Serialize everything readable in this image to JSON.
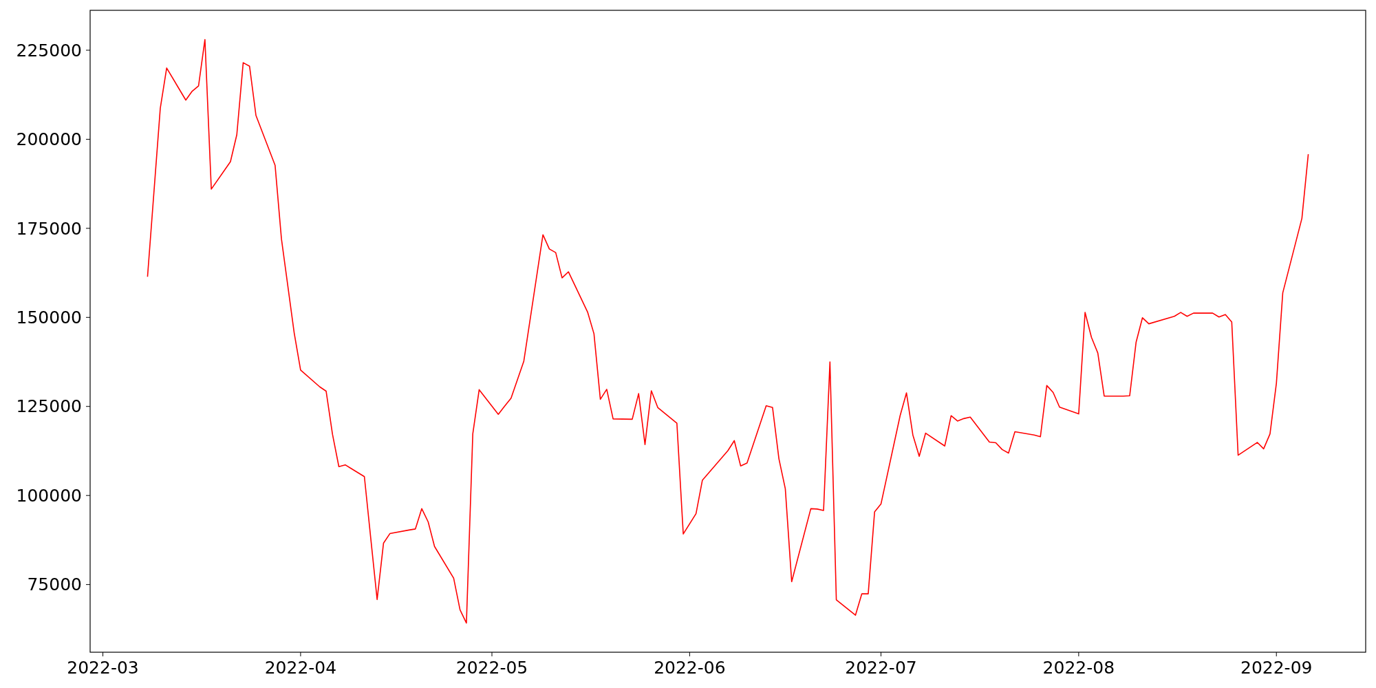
{
  "chart_data": {
    "type": "line",
    "x": [
      "2022-03-08",
      "2022-03-10",
      "2022-03-11",
      "2022-03-14",
      "2022-03-15",
      "2022-03-16",
      "2022-03-17",
      "2022-03-18",
      "2022-03-21",
      "2022-03-22",
      "2022-03-23",
      "2022-03-24",
      "2022-03-25",
      "2022-03-28",
      "2022-03-29",
      "2022-03-31",
      "2022-04-01",
      "2022-04-04",
      "2022-04-05",
      "2022-04-06",
      "2022-04-07",
      "2022-04-08",
      "2022-04-11",
      "2022-04-12",
      "2022-04-13",
      "2022-04-14",
      "2022-04-15",
      "2022-04-18",
      "2022-04-19",
      "2022-04-20",
      "2022-04-21",
      "2022-04-22",
      "2022-04-25",
      "2022-04-26",
      "2022-04-27",
      "2022-04-28",
      "2022-04-29",
      "2022-05-02",
      "2022-05-03",
      "2022-05-04",
      "2022-05-06",
      "2022-05-09",
      "2022-05-10",
      "2022-05-11",
      "2022-05-12",
      "2022-05-13",
      "2022-05-16",
      "2022-05-17",
      "2022-05-18",
      "2022-05-19",
      "2022-05-20",
      "2022-05-23",
      "2022-05-24",
      "2022-05-25",
      "2022-05-26",
      "2022-05-27",
      "2022-05-30",
      "2022-05-31",
      "2022-06-02",
      "2022-06-03",
      "2022-06-07",
      "2022-06-08",
      "2022-06-09",
      "2022-06-10",
      "2022-06-13",
      "2022-06-14",
      "2022-06-15",
      "2022-06-16",
      "2022-06-17",
      "2022-06-20",
      "2022-06-21",
      "2022-06-22",
      "2022-06-23",
      "2022-06-24",
      "2022-06-27",
      "2022-06-28",
      "2022-06-29",
      "2022-06-30",
      "2022-07-01",
      "2022-07-04",
      "2022-07-05",
      "2022-07-06",
      "2022-07-07",
      "2022-07-08",
      "2022-07-11",
      "2022-07-12",
      "2022-07-13",
      "2022-07-14",
      "2022-07-15",
      "2022-07-18",
      "2022-07-19",
      "2022-07-20",
      "2022-07-21",
      "2022-07-22",
      "2022-07-25",
      "2022-07-26",
      "2022-07-27",
      "2022-07-28",
      "2022-07-29",
      "2022-08-01",
      "2022-08-02",
      "2022-08-03",
      "2022-08-04",
      "2022-08-05",
      "2022-08-08",
      "2022-08-09",
      "2022-08-10",
      "2022-08-11",
      "2022-08-12",
      "2022-08-16",
      "2022-08-17",
      "2022-08-18",
      "2022-08-19",
      "2022-08-22",
      "2022-08-23",
      "2022-08-24",
      "2022-08-25",
      "2022-08-26",
      "2022-08-29",
      "2022-08-30",
      "2022-08-31",
      "2022-09-01",
      "2022-09-02",
      "2022-09-05",
      "2022-09-06"
    ],
    "series": [
      {
        "color": "#ff0000",
        "values": [
          161400,
          208700,
          220000,
          211000,
          213500,
          215000,
          228000,
          186000,
          193700,
          201300,
          221500,
          220500,
          206700,
          192700,
          172000,
          145600,
          135200,
          130500,
          129300,
          117200,
          108100,
          108600,
          105300,
          88000,
          70800,
          86600,
          89300,
          90300,
          90600,
          96300,
          92600,
          85700,
          76800,
          67900,
          64200,
          117300,
          129700,
          122800,
          125100,
          127300,
          137700,
          173200,
          169200,
          168200,
          161100,
          162800,
          151500,
          145400,
          127000,
          129800,
          121500,
          121400,
          128600,
          114300,
          129400,
          124700,
          120300,
          89200,
          94900,
          104300,
          112600,
          115400,
          108300,
          109100,
          125200,
          124700,
          110300,
          101900,
          75800,
          96300,
          96200,
          95800,
          137500,
          70700,
          66400,
          72400,
          72400,
          95400,
          97600,
          122400,
          128800,
          117000,
          111000,
          117500,
          113900,
          122400,
          120900,
          121600,
          122000,
          115000,
          114800,
          112900,
          111900,
          117900,
          117000,
          116500,
          130900,
          128900,
          124800,
          122900,
          151400,
          144400,
          140000,
          127900,
          127900,
          128000,
          143000,
          149900,
          148200,
          150300,
          151400,
          150300,
          151200,
          151200,
          150100,
          150800,
          148700,
          111300,
          114900,
          113100,
          117300,
          131500,
          156900,
          177800,
          195800
        ]
      }
    ],
    "xlim": [
      "2022-02-27",
      "2022-09-15"
    ],
    "xticks": [
      {
        "value": "2022-03-01",
        "label": "2022-03"
      },
      {
        "value": "2022-04-01",
        "label": "2022-04"
      },
      {
        "value": "2022-05-01",
        "label": "2022-05"
      },
      {
        "value": "2022-06-01",
        "label": "2022-06"
      },
      {
        "value": "2022-07-01",
        "label": "2022-07"
      },
      {
        "value": "2022-08-01",
        "label": "2022-08"
      },
      {
        "value": "2022-09-01",
        "label": "2022-09"
      }
    ],
    "ylim": [
      56000,
      236200
    ],
    "yticks": [
      75000,
      100000,
      125000,
      150000,
      175000,
      200000,
      225000
    ],
    "grid": false,
    "marker": "none",
    "line_style": "solid"
  }
}
